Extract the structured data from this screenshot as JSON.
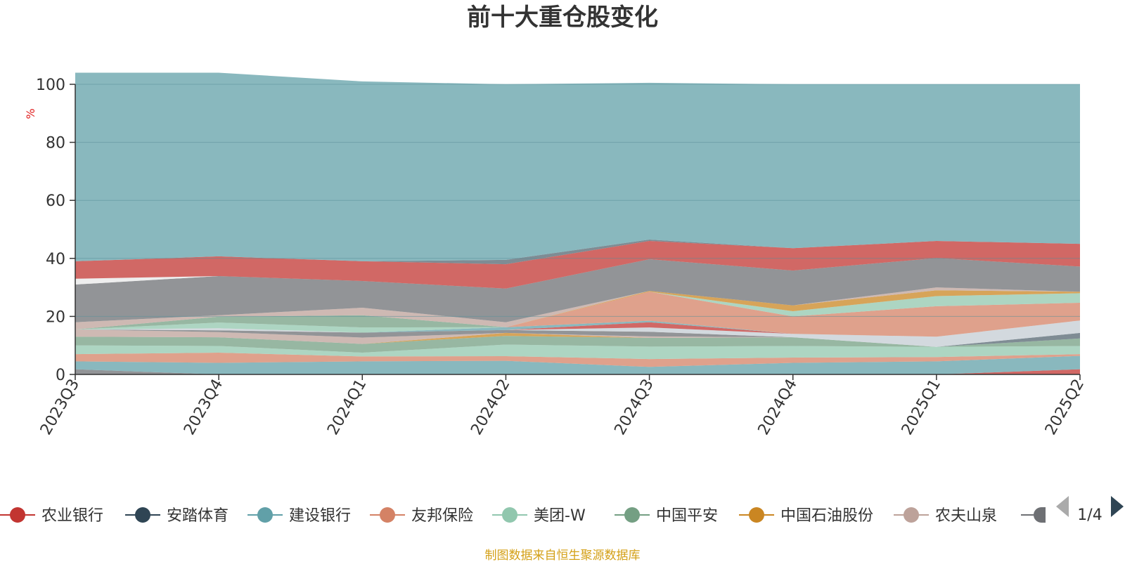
{
  "chart_data": {
    "type": "area",
    "title": "前十大重仓股变化",
    "ylabel": "%",
    "ylim": [
      0,
      100
    ],
    "yticks": [
      "0",
      "20",
      "40",
      "60",
      "80",
      "100"
    ],
    "categories": [
      "2023Q3",
      "2023Q4",
      "2024Q1",
      "2024Q2",
      "2024Q3",
      "2024Q4",
      "2025Q1",
      "2025Q2"
    ],
    "series": [
      {
        "name": "",
        "color": "#6e7074",
        "values": [
          1.8,
          0.0,
          0.0,
          0.0,
          0.0,
          0.0,
          0.0,
          0.0
        ]
      },
      {
        "name": "农业银行",
        "color": "#c23531",
        "values": [
          0.0,
          0.0,
          0.0,
          0.0,
          0.0,
          0.0,
          0.0,
          1.8
        ]
      },
      {
        "name": "建设银行",
        "color": "#61a0a8",
        "values": [
          2.7,
          4.0,
          4.5,
          4.7,
          2.6,
          4.0,
          4.5,
          4.6
        ]
      },
      {
        "name": "友邦保险",
        "color": "#d48265",
        "values": [
          2.5,
          3.5,
          1.7,
          1.6,
          2.7,
          1.8,
          1.5,
          0.6
        ]
      },
      {
        "name": "美团-W",
        "color": "#91c7ae",
        "values": [
          3.0,
          2.3,
          1.3,
          4.0,
          4.3,
          4.0,
          3.5,
          2.8
        ]
      },
      {
        "name": "中国平安",
        "color": "#749f83",
        "values": [
          3.0,
          3.0,
          3.0,
          3.0,
          3.0,
          3.0,
          0.0,
          2.6
        ]
      },
      {
        "name": "中国石油股份",
        "color": "#ca8622",
        "values": [
          0.0,
          0.0,
          0.0,
          1.0,
          0.0,
          0.0,
          0.0,
          0.0
        ]
      },
      {
        "name": "农夫山泉",
        "color": "#bda29a",
        "values": [
          2.5,
          1.8,
          2.2,
          0.0,
          0.5,
          0.0,
          0.0,
          0.0
        ]
      },
      {
        "name": "",
        "color": "#6e7074",
        "values": [
          0.0,
          0.6,
          1.7,
          1.0,
          1.6,
          0.0,
          0.0,
          0.0
        ]
      },
      {
        "name": "",
        "color": "#546570",
        "values": [
          0.0,
          0.0,
          0.0,
          0.0,
          0.0,
          0.0,
          0.0,
          1.9
        ]
      },
      {
        "name": "",
        "color": "#c4ccd3",
        "values": [
          0.0,
          0.7,
          0.0,
          0.0,
          1.5,
          1.2,
          3.5,
          4.3
        ]
      },
      {
        "name": "",
        "color": "#c23531",
        "values": [
          0.0,
          0.0,
          0.0,
          0.0,
          1.8,
          0.0,
          0.0,
          0.0
        ]
      },
      {
        "name": "",
        "color": "#61a0a8",
        "values": [
          0.0,
          0.0,
          0.0,
          1.0,
          0.5,
          0.0,
          0.0,
          0.0
        ]
      },
      {
        "name": "",
        "color": "#d48265",
        "values": [
          0.0,
          0.0,
          0.0,
          0.0,
          10.0,
          6.0,
          10.5,
          6.1
        ]
      },
      {
        "name": "",
        "color": "#91c7ae",
        "values": [
          0.0,
          2.0,
          1.8,
          0.0,
          0.0,
          1.8,
          3.5,
          3.3
        ]
      },
      {
        "name": "",
        "color": "#749f83",
        "values": [
          0.0,
          2.0,
          4.2,
          0.0,
          0.0,
          0.0,
          0.0,
          0.0
        ]
      },
      {
        "name": "",
        "color": "#ca8622",
        "values": [
          0.0,
          0.0,
          0.0,
          0.0,
          0.3,
          2.0,
          2.0,
          0.5
        ]
      },
      {
        "name": "",
        "color": "#bda29a",
        "values": [
          2.5,
          0.5,
          2.6,
          1.7,
          0.0,
          0.0,
          1.0,
          0.0
        ]
      },
      {
        "name": "",
        "color": "#ffffff",
        "values": [
          0.0,
          0.0,
          0.0,
          0.0,
          0.0,
          0.0,
          0.0,
          0.0
        ]
      },
      {
        "name": "",
        "color": "#6e7074",
        "values": [
          13.0,
          13.5,
          9.2,
          11.6,
          10.9,
          12.0,
          10.1,
          8.7
        ]
      },
      {
        "name": "",
        "color": "#e8e8e8",
        "values": [
          2.0,
          0.0,
          0.0,
          0.0,
          0.0,
          0.0,
          0.0,
          0.0
        ]
      },
      {
        "name": "",
        "color": "#c23531",
        "values": [
          6.0,
          6.8,
          6.8,
          8.4,
          6.3,
          7.7,
          5.9,
          7.8
        ]
      },
      {
        "name": "",
        "color": "#546570",
        "values": [
          0.0,
          0.0,
          0.0,
          1.5,
          0.5,
          0.0,
          0.0,
          0.0
        ]
      },
      {
        "name": "",
        "color": "#61a0a8",
        "values": [
          65.0,
          63.3,
          62.0,
          60.5,
          54.0,
          56.5,
          54.0,
          55.0
        ]
      }
    ]
  },
  "legend": {
    "items": [
      {
        "label": "农业银行",
        "color": "#c23531"
      },
      {
        "label": "安踏体育",
        "color": "#2f4554"
      },
      {
        "label": "建设银行",
        "color": "#61a0a8"
      },
      {
        "label": "友邦保险",
        "color": "#d48265"
      },
      {
        "label": "美团-W",
        "color": "#91c7ae"
      },
      {
        "label": "中国平安",
        "color": "#749f83"
      },
      {
        "label": "中国石油股份",
        "color": "#ca8622"
      },
      {
        "label": "农夫山泉",
        "color": "#bda29a"
      }
    ],
    "truncated_item_color": "#6e7074",
    "page": "1/4"
  },
  "source": "制图数据来自恒生聚源数据库"
}
